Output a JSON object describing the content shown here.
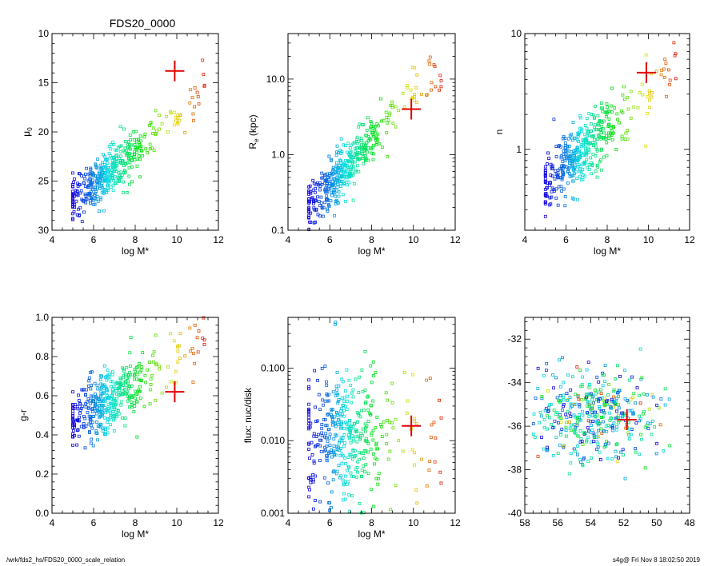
{
  "title": "FDS20_0000",
  "footer": {
    "left": "/wrk/fds2_hs/FDS20_0000_scale_relation",
    "right": "s4g@  Fri Nov  8 18:02:50 2019"
  },
  "colors": {
    "marker": "#e00000",
    "axes": "#000000"
  },
  "chart_data": [
    {
      "type": "scatter",
      "id": "mu0",
      "xlabel": "log M*",
      "ylabel": "μ0",
      "ylabel_main": "μ",
      "ylabel_sub": "0",
      "xlim": [
        4,
        12
      ],
      "ylim": [
        30,
        10
      ],
      "yscale": "linear",
      "xticks": [
        4,
        6,
        8,
        10,
        12
      ],
      "yticks": [
        10,
        15,
        20,
        25,
        30
      ],
      "ytick_labels": [
        "10",
        "15",
        "20",
        "25",
        "30"
      ],
      "highlight": {
        "x": 9.9,
        "y": 13.8
      },
      "trend": {
        "slope": -1.75,
        "intercept": 35.8,
        "scatter": 1.2
      }
    },
    {
      "type": "scatter",
      "id": "re",
      "xlabel": "log M*",
      "ylabel": "Re (kpc)",
      "ylabel_main": "R",
      "ylabel_sub": "e",
      "ylabel_tail": " (kpc)",
      "xlim": [
        4,
        12
      ],
      "ylim": [
        0.1,
        40
      ],
      "yscale": "log",
      "xticks": [
        4,
        6,
        8,
        10,
        12
      ],
      "yticks": [
        0.1,
        1.0,
        10.0
      ],
      "ytick_labels": [
        "0.1",
        "1.0",
        "10.0"
      ],
      "highlight": {
        "x": 9.9,
        "y": 4.0
      },
      "trend": {
        "slope": 0.3,
        "intercept": -2.2,
        "scatter": 0.16
      }
    },
    {
      "type": "scatter",
      "id": "n",
      "xlabel": "log M*",
      "ylabel": "n",
      "xlim": [
        4,
        12
      ],
      "ylim": [
        0.2,
        10
      ],
      "yscale": "log",
      "xticks": [
        4,
        6,
        8,
        10,
        12
      ],
      "yticks": [
        1,
        10
      ],
      "ytick_labels": [
        "1",
        "10"
      ],
      "highlight": {
        "x": 9.9,
        "y": 4.6
      },
      "trend": {
        "slope": 0.16,
        "intercept": -1.1,
        "scatter": 0.14
      }
    },
    {
      "type": "scatter",
      "id": "gr",
      "xlabel": "log M*",
      "ylabel": "g-r",
      "xlim": [
        4,
        12
      ],
      "ylim": [
        0.0,
        1.0
      ],
      "yscale": "linear",
      "xticks": [
        4,
        6,
        8,
        10,
        12
      ],
      "yticks": [
        0.0,
        0.2,
        0.4,
        0.6,
        0.8,
        1.0
      ],
      "ytick_labels": [
        "0.0",
        "0.2",
        "0.4",
        "0.6",
        "0.8",
        "1.0"
      ],
      "highlight": {
        "x": 9.9,
        "y": 0.62
      },
      "trend": {
        "slope": 0.06,
        "intercept": 0.17,
        "scatter": 0.08
      }
    },
    {
      "type": "scatter",
      "id": "flux",
      "xlabel": "log M*",
      "ylabel": "flux: nuc/disk",
      "xlim": [
        4,
        12
      ],
      "ylim": [
        0.001,
        0.5
      ],
      "yscale": "log",
      "xticks": [
        4,
        6,
        8,
        10,
        12
      ],
      "yticks": [
        0.001,
        0.01,
        0.1
      ],
      "ytick_labels": [
        "0.001",
        "0.010",
        "0.100"
      ],
      "highlight": {
        "x": 9.9,
        "y": 0.016
      },
      "trend": {
        "slope": 0.0,
        "intercept": -1.9,
        "scatter": 0.45
      }
    },
    {
      "type": "scatter",
      "id": "radec",
      "xlabel": "",
      "ylabel": "",
      "xlim": [
        58,
        48
      ],
      "ylim": [
        -40,
        -31
      ],
      "yscale": "linear",
      "xticks": [
        58,
        56,
        54,
        52,
        50,
        48
      ],
      "yticks": [
        -40,
        -38,
        -36,
        -34,
        -32
      ],
      "ytick_labels": [
        "-40",
        "-38",
        "-36",
        "-34",
        "-32"
      ],
      "highlight": {
        "x": 51.8,
        "y": -35.7
      },
      "trend": null
    }
  ]
}
